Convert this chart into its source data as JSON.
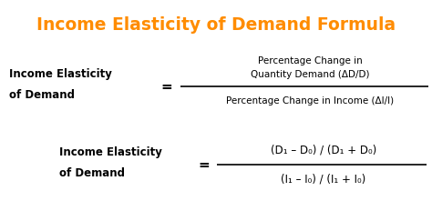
{
  "title": "Income Elasticity of Demand Formula",
  "title_color": "#FF8C00",
  "title_fontsize": 13.5,
  "bg_color": "#FFFFFF",
  "text_color": "#000000",
  "fig_width": 4.74,
  "fig_height": 2.43,
  "dpi": 100,
  "formula1_left_line1": "Income Elasticity",
  "formula1_left_line2": "of Demand",
  "formula1_equals": "=",
  "formula1_numerator_line1": "Percentage Change in",
  "formula1_numerator_line2": "Quantity Demand (ΔD/D)",
  "formula1_denominator": "Percentage Change in Income (ΔI/I)",
  "formula2_left_line1": "Income Elasticity",
  "formula2_left_line2": "of Demand",
  "formula2_equals": "=",
  "formula2_numerator": "(D₁ – D₀) / (D₁ + D₀)",
  "formula2_denominator": "(I₁ – I₀) / (I₁ + I₀)"
}
